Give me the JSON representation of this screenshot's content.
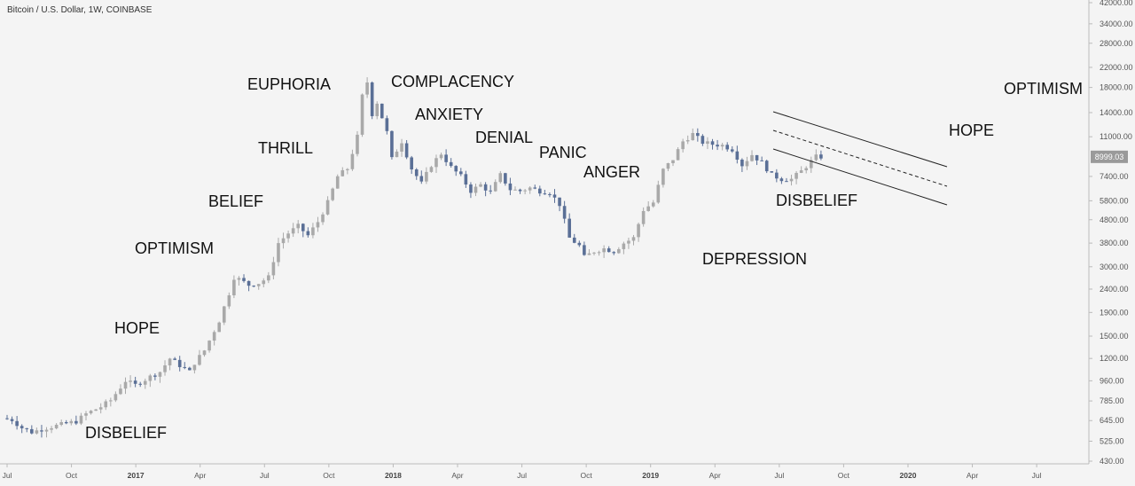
{
  "header": {
    "title": "Bitcoin / U.S. Dollar, 1W, COINBASE"
  },
  "colors": {
    "background": "#f4f4f4",
    "up_candle": "#a9a9a9",
    "down_candle": "#5a6f96",
    "axis": "#bbbbbb",
    "channel": "#222222",
    "price_tag": "#9a9a9a"
  },
  "chart_data": {
    "type": "candlestick",
    "scale": "log",
    "ylim": [
      430,
      42000
    ],
    "y_ticks": [
      "42000.00",
      "34000.00",
      "28000.00",
      "22000.00",
      "18000.00",
      "14000.00",
      "11000.00",
      "7400.00",
      "5800.00",
      "4800.00",
      "3800.00",
      "3000.00",
      "2400.00",
      "1900.00",
      "1500.00",
      "1200.00",
      "960.00",
      "785.00",
      "645.00",
      "525.00",
      "430.00"
    ],
    "x_ticks": [
      {
        "label": "Jul",
        "date": "2016-07"
      },
      {
        "label": "Oct",
        "date": "2016-10"
      },
      {
        "label": "2017",
        "date": "2017-01",
        "year": true
      },
      {
        "label": "Apr",
        "date": "2017-04"
      },
      {
        "label": "Jul",
        "date": "2017-07"
      },
      {
        "label": "Oct",
        "date": "2017-10"
      },
      {
        "label": "2018",
        "date": "2018-01",
        "year": true
      },
      {
        "label": "Apr",
        "date": "2018-04"
      },
      {
        "label": "Jul",
        "date": "2018-07"
      },
      {
        "label": "Oct",
        "date": "2018-10"
      },
      {
        "label": "2019",
        "date": "2019-01",
        "year": true
      },
      {
        "label": "Apr",
        "date": "2019-04"
      },
      {
        "label": "Jul",
        "date": "2019-07"
      },
      {
        "label": "Oct",
        "date": "2019-10"
      },
      {
        "label": "2020",
        "date": "2020-01",
        "year": true
      },
      {
        "label": "Apr",
        "date": "2020-04"
      },
      {
        "label": "Jul",
        "date": "2020-07"
      }
    ],
    "last_price": "8999.03",
    "stage_labels": [
      "DISBELIEF",
      "HOPE",
      "OPTIMISM",
      "BELIEF",
      "THRILL",
      "EUPHORIA",
      "COMPLACENCY",
      "ANXIETY",
      "DENIAL",
      "PANIC",
      "ANGER",
      "DEPRESSION",
      "DISBELIEF",
      "HOPE",
      "OPTIMISM"
    ],
    "channel": "descending channel drawn from mid-2019 peak to early 2020"
  }
}
